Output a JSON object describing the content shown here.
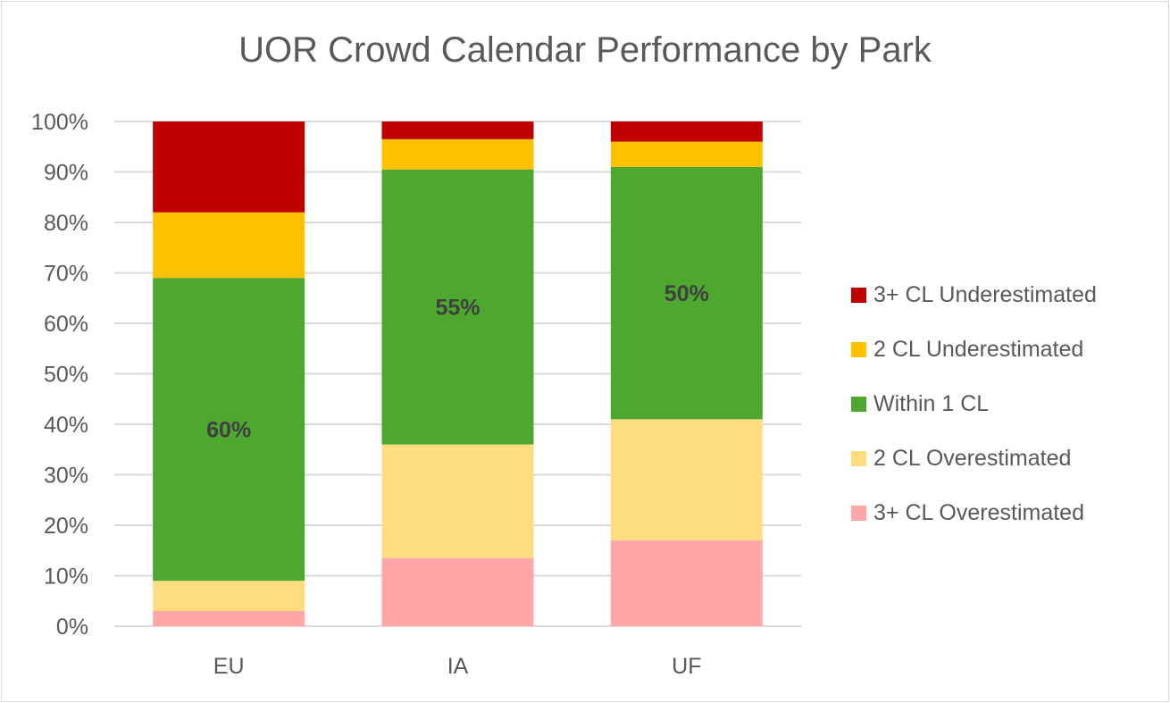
{
  "chart_data": {
    "type": "bar",
    "stacked": "percent",
    "title": "UOR Crowd Calendar Performance by Park",
    "xlabel": "",
    "ylabel": "",
    "categories": [
      "EU",
      "IA",
      "UF"
    ],
    "ylim": [
      0,
      100
    ],
    "yticks": [
      "0%",
      "10%",
      "20%",
      "30%",
      "40%",
      "50%",
      "60%",
      "70%",
      "80%",
      "90%",
      "100%"
    ],
    "grid": true,
    "legend_position": "right",
    "series": [
      {
        "name": "3+ CL Overestimated",
        "color": "#ffa7a8",
        "values": [
          3,
          13.5,
          17
        ]
      },
      {
        "name": "2 CL Overestimated",
        "color": "#ffdd7e",
        "values": [
          6,
          22.5,
          24
        ]
      },
      {
        "name": "Within 1 CL",
        "color": "#4ea72e",
        "values": [
          60,
          54.5,
          50
        ],
        "data_labels": [
          "60%",
          "55%",
          "50%"
        ]
      },
      {
        "name": "2 CL Underestimated",
        "color": "#ffc000",
        "values": [
          13,
          6,
          5
        ]
      },
      {
        "name": "3+ CL Underestimated",
        "color": "#c00000",
        "values": [
          18,
          3.5,
          4
        ]
      }
    ],
    "legend_order": [
      "3+ CL Underestimated",
      "2 CL Underestimated",
      "Within 1 CL",
      "2 CL Overestimated",
      "3+ CL Overestimated"
    ]
  }
}
